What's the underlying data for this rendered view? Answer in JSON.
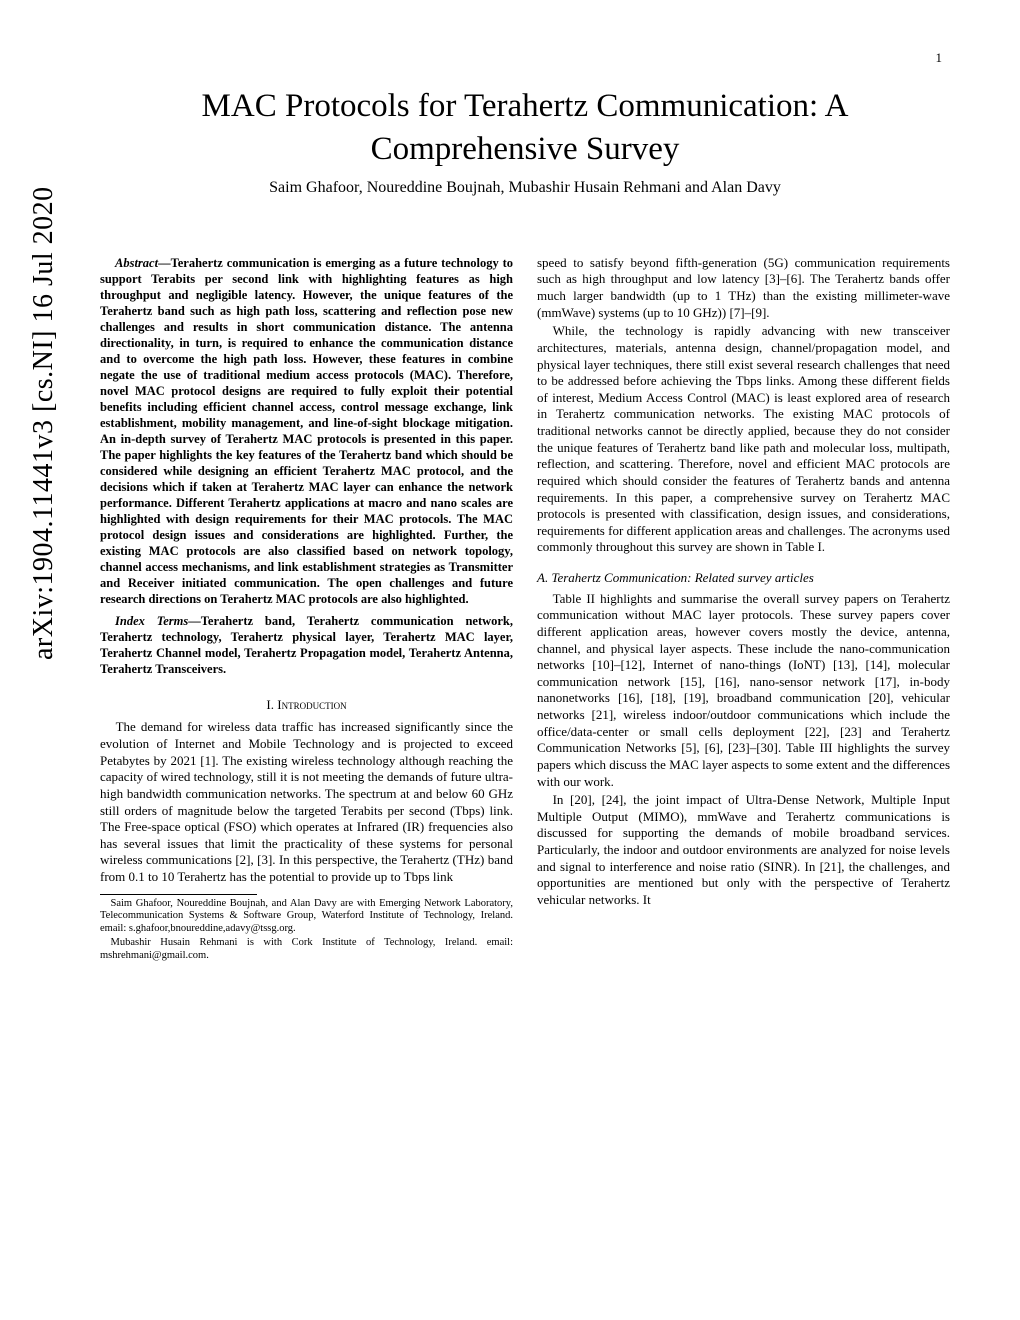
{
  "page_number": "1",
  "arxiv_id": "arXiv:1904.11441v3  [cs.NI]  16 Jul 2020",
  "title": "MAC Protocols for Terahertz Communication: A Comprehensive Survey",
  "authors": "Saim Ghafoor, Noureddine Boujnah, Mubashir Husain Rehmani and Alan Davy",
  "abstract_label": "Abstract",
  "abstract_text": "—Terahertz communication is emerging as a future technology to support Terabits per second link with highlighting features as high throughput and negligible latency. However, the unique features of the Terahertz band such as high path loss, scattering and reflection pose new challenges and results in short communication distance. The antenna directionality, in turn, is required to enhance the communication distance and to overcome the high path loss. However, these features in combine negate the use of traditional medium access protocols (MAC). Therefore, novel MAC protocol designs are required to fully exploit their potential benefits including efficient channel access, control message exchange, link establishment, mobility management, and line-of-sight blockage mitigation. An in-depth survey of Terahertz MAC protocols is presented in this paper. The paper highlights the key features of the Terahertz band which should be considered while designing an efficient Terahertz MAC protocol, and the decisions which if taken at Terahertz MAC layer can enhance the network performance. Different Terahertz applications at macro and nano scales are highlighted with design requirements for their MAC protocols. The MAC protocol design issues and considerations are highlighted. Further, the existing MAC protocols are also classified based on network topology, channel access mechanisms, and link establishment strategies as Transmitter and Receiver initiated communication. The open challenges and future research directions on Terahertz MAC protocols are also highlighted.",
  "index_terms_label": "Index Terms",
  "index_terms_text": "—Terahertz band, Terahertz communication network, Terahertz technology, Terahertz physical layer, Terahertz MAC layer, Terahertz Channel model, Terahertz Propagation model, Terahertz Antenna, Terahertz Transceivers.",
  "section1_num": "I.",
  "section1_title": "Introduction",
  "intro_p1": "The demand for wireless data traffic has increased significantly since the evolution of Internet and Mobile Technology and is projected to exceed Petabytes by 2021 [1]. The existing wireless technology although reaching the capacity of wired technology, still it is not meeting the demands of future ultra-high bandwidth communication networks. The spectrum at and below 60 GHz still orders of magnitude below the targeted Terabits per second (Tbps) link. The Free-space optical (FSO) which operates at Infrared (IR) frequencies also has several issues that limit the practicality of these systems for personal wireless communications [2], [3]. In this perspective, the Terahertz (THz) band from 0.1 to 10 Terahertz has the potential to provide up to Tbps link",
  "footnote1": "Saim Ghafoor, Noureddine Boujnah, and Alan Davy are with Emerging Network Laboratory, Telecommunication Systems & Software Group, Waterford Institute of Technology, Ireland. email: s.ghafoor,bnoureddine,adavy@tssg.org.",
  "footnote2": "Mubashir Husain Rehmani is with Cork Institute of Technology, Ireland. email: mshrehmani@gmail.com.",
  "col2_p1": "speed to satisfy beyond fifth-generation (5G) communication requirements such as high throughput and low latency [3]–[6]. The Terahertz bands offer much larger bandwidth (up to 1 THz) than the existing millimeter-wave (mmWave) systems (up to 10 GHz)) [7]–[9].",
  "col2_p2": "While, the technology is rapidly advancing with new transceiver architectures, materials, antenna design, channel/propagation model, and physical layer techniques, there still exist several research challenges that need to be addressed before achieving the Tbps links. Among these different fields of interest, Medium Access Control (MAC) is least explored area of research in Terahertz communication networks. The existing MAC protocols of traditional networks cannot be directly applied, because they do not consider the unique features of Terahertz band like path and molecular loss, multipath, reflection, and scattering. Therefore, novel and efficient MAC protocols are required which should consider the features of Terahertz bands and antenna requirements. In this paper, a comprehensive survey on Terahertz MAC protocols is presented with classification, design issues, and considerations, requirements for different application areas and challenges. The acronyms used commonly throughout this survey are shown in Table I.",
  "subsection_a": "A. Terahertz Communication: Related survey articles",
  "col2_p3": "Table II highlights and summarise the overall survey papers on Terahertz communication without MAC layer protocols. These survey papers cover different application areas, however covers mostly the device, antenna, channel, and physical layer aspects. These include the nano-communication networks [10]–[12], Internet of nano-things (IoNT) [13], [14], molecular communication network [15], [16], nano-sensor network [17], in-body nanonetworks [16], [18], [19], broadband communication [20], vehicular networks [21], wireless indoor/outdoor communications which include the office/data-center or small cells deployment [22], [23] and Terahertz Communication Networks [5], [6], [23]–[30]. Table III highlights the survey papers which discuss the MAC layer aspects to some extent and the differences with our work.",
  "col2_p4": "In [20], [24], the joint impact of Ultra-Dense Network, Multiple Input Multiple Output (MIMO), mmWave and Terahertz communications is discussed for supporting the demands of mobile broadband services. Particularly, the indoor and outdoor environments are analyzed for noise levels and signal to interference and noise ratio (SINR). In [21], the challenges, and opportunities are mentioned but only with the perspective of Terahertz vehicular networks. It"
}
